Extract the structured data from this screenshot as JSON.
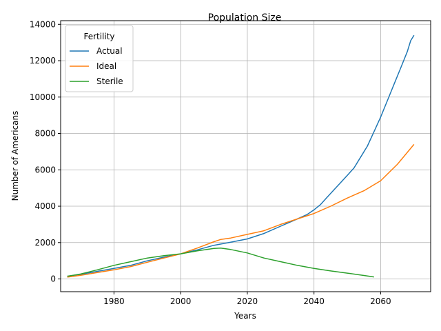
{
  "chart_data": {
    "type": "line",
    "title": "Population Size",
    "xlabel": "Years",
    "ylabel": "Number of Americans",
    "xlim": [
      1964,
      2075
    ],
    "ylim": [
      -700,
      14200
    ],
    "xticks": [
      1980,
      2000,
      2020,
      2040,
      2060
    ],
    "yticks": [
      0,
      2000,
      4000,
      6000,
      8000,
      10000,
      12000,
      14000
    ],
    "grid": true,
    "legend": {
      "title": "Fertility",
      "placement": "top-left"
    },
    "series": [
      {
        "name": "Actual",
        "color": "#1f77b4",
        "x": [
          1966,
          1970,
          1975,
          1980,
          1985,
          1990,
          1995,
          2000,
          2005,
          2010,
          2015,
          2020,
          2025,
          2030,
          2035,
          2038,
          2040,
          2042,
          2044,
          2046,
          2048,
          2050,
          2052,
          2054,
          2056,
          2058,
          2060,
          2062,
          2064,
          2066,
          2068,
          2069,
          2070
        ],
        "values": [
          150,
          250,
          420,
          580,
          750,
          1000,
          1200,
          1380,
          1600,
          1850,
          2020,
          2200,
          2500,
          2900,
          3300,
          3550,
          3800,
          4100,
          4500,
          4900,
          5300,
          5700,
          6100,
          6700,
          7300,
          8100,
          8900,
          9800,
          10700,
          11600,
          12500,
          13100,
          13400
        ]
      },
      {
        "name": "Ideal",
        "color": "#ff7f0e",
        "x": [
          1966,
          1970,
          1975,
          1980,
          1985,
          1990,
          1995,
          2000,
          2005,
          2010,
          2012,
          2015,
          2020,
          2025,
          2030,
          2035,
          2040,
          2045,
          2050,
          2055,
          2060,
          2065,
          2070
        ],
        "values": [
          100,
          200,
          350,
          500,
          680,
          920,
          1150,
          1380,
          1700,
          2050,
          2170,
          2250,
          2450,
          2650,
          3000,
          3300,
          3600,
          4000,
          4450,
          4850,
          5400,
          6300,
          7400
        ]
      },
      {
        "name": "Sterile",
        "color": "#2ca02c",
        "x": [
          1966,
          1970,
          1975,
          1980,
          1985,
          1990,
          1995,
          2000,
          2005,
          2010,
          2012,
          2015,
          2020,
          2025,
          2030,
          2035,
          2040,
          2045,
          2050,
          2055,
          2058
        ],
        "values": [
          150,
          270,
          500,
          750,
          950,
          1150,
          1280,
          1380,
          1550,
          1680,
          1700,
          1620,
          1430,
          1150,
          950,
          750,
          580,
          440,
          320,
          190,
          110
        ]
      }
    ]
  }
}
